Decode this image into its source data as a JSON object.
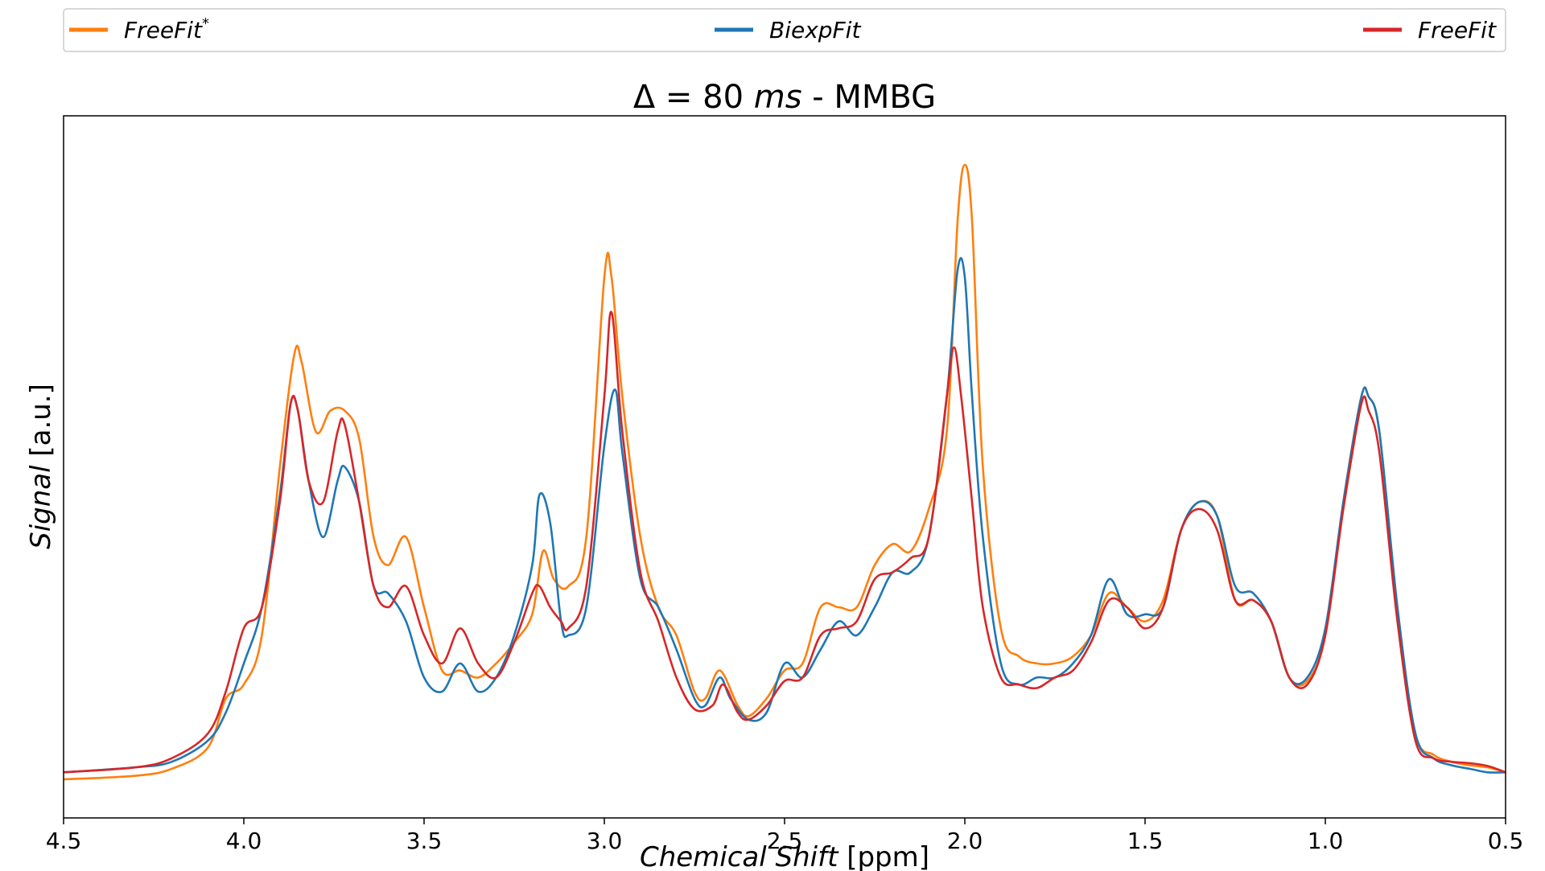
{
  "chart_data": {
    "type": "line",
    "title": {
      "prefix": "Δ = 80 ",
      "unit": "ms",
      "suffix": " - MMBG"
    },
    "xlabel": {
      "italic": "Chemical Shift",
      "normal": " [ppm]"
    },
    "ylabel": {
      "italic": "Signal",
      "normal": " [a.u.]"
    },
    "xlim": [
      4.5,
      0.5
    ],
    "ylim": [
      0,
      1.0
    ],
    "x_reversed": true,
    "grid": false,
    "legend_position": "top",
    "xticks": [
      "4.5",
      "4.0",
      "3.5",
      "3.0",
      "2.5",
      "2.0",
      "1.5",
      "1.0",
      "0.5"
    ],
    "series": [
      {
        "name": "FreeFit",
        "name_sup": "*",
        "color": "#ff7f0e",
        "points": [
          [
            4.5,
            0.055
          ],
          [
            4.3,
            0.06
          ],
          [
            4.2,
            0.07
          ],
          [
            4.1,
            0.1
          ],
          [
            4.05,
            0.17
          ],
          [
            4.0,
            0.19
          ],
          [
            3.95,
            0.26
          ],
          [
            3.9,
            0.5
          ],
          [
            3.86,
            0.66
          ],
          [
            3.84,
            0.65
          ],
          [
            3.8,
            0.55
          ],
          [
            3.76,
            0.58
          ],
          [
            3.72,
            0.58
          ],
          [
            3.68,
            0.54
          ],
          [
            3.64,
            0.4
          ],
          [
            3.6,
            0.36
          ],
          [
            3.55,
            0.4
          ],
          [
            3.5,
            0.3
          ],
          [
            3.45,
            0.21
          ],
          [
            3.4,
            0.21
          ],
          [
            3.35,
            0.2
          ],
          [
            3.3,
            0.22
          ],
          [
            3.25,
            0.25
          ],
          [
            3.2,
            0.29
          ],
          [
            3.17,
            0.38
          ],
          [
            3.14,
            0.34
          ],
          [
            3.1,
            0.33
          ],
          [
            3.05,
            0.4
          ],
          [
            3.0,
            0.77
          ],
          [
            2.98,
            0.77
          ],
          [
            2.95,
            0.6
          ],
          [
            2.9,
            0.4
          ],
          [
            2.85,
            0.3
          ],
          [
            2.8,
            0.26
          ],
          [
            2.75,
            0.18
          ],
          [
            2.72,
            0.17
          ],
          [
            2.68,
            0.21
          ],
          [
            2.63,
            0.16
          ],
          [
            2.6,
            0.145
          ],
          [
            2.55,
            0.17
          ],
          [
            2.5,
            0.21
          ],
          [
            2.45,
            0.22
          ],
          [
            2.4,
            0.3
          ],
          [
            2.35,
            0.3
          ],
          [
            2.3,
            0.3
          ],
          [
            2.25,
            0.36
          ],
          [
            2.2,
            0.39
          ],
          [
            2.15,
            0.38
          ],
          [
            2.1,
            0.44
          ],
          [
            2.05,
            0.55
          ],
          [
            2.02,
            0.85
          ],
          [
            2.0,
            0.93
          ],
          [
            1.98,
            0.85
          ],
          [
            1.95,
            0.5
          ],
          [
            1.9,
            0.27
          ],
          [
            1.85,
            0.23
          ],
          [
            1.8,
            0.22
          ],
          [
            1.75,
            0.22
          ],
          [
            1.7,
            0.23
          ],
          [
            1.65,
            0.26
          ],
          [
            1.6,
            0.32
          ],
          [
            1.55,
            0.3
          ],
          [
            1.5,
            0.28
          ],
          [
            1.45,
            0.31
          ],
          [
            1.4,
            0.41
          ],
          [
            1.35,
            0.45
          ],
          [
            1.3,
            0.43
          ],
          [
            1.25,
            0.31
          ],
          [
            1.2,
            0.31
          ],
          [
            1.15,
            0.28
          ],
          [
            1.1,
            0.2
          ],
          [
            1.05,
            0.195
          ],
          [
            1.0,
            0.26
          ],
          [
            0.95,
            0.45
          ],
          [
            0.9,
            0.6
          ],
          [
            0.88,
            0.6
          ],
          [
            0.85,
            0.55
          ],
          [
            0.8,
            0.3
          ],
          [
            0.75,
            0.12
          ],
          [
            0.7,
            0.09
          ],
          [
            0.65,
            0.08
          ],
          [
            0.6,
            0.075
          ],
          [
            0.55,
            0.072
          ],
          [
            0.5,
            0.065
          ]
        ]
      },
      {
        "name": "BiexpFit",
        "name_sup": "",
        "color": "#1f77b4",
        "points": [
          [
            4.5,
            0.065
          ],
          [
            4.3,
            0.072
          ],
          [
            4.2,
            0.08
          ],
          [
            4.1,
            0.11
          ],
          [
            4.05,
            0.15
          ],
          [
            4.0,
            0.22
          ],
          [
            3.95,
            0.3
          ],
          [
            3.9,
            0.46
          ],
          [
            3.87,
            0.59
          ],
          [
            3.85,
            0.58
          ],
          [
            3.82,
            0.48
          ],
          [
            3.78,
            0.4
          ],
          [
            3.74,
            0.48
          ],
          [
            3.72,
            0.5
          ],
          [
            3.68,
            0.45
          ],
          [
            3.64,
            0.33
          ],
          [
            3.6,
            0.32
          ],
          [
            3.55,
            0.28
          ],
          [
            3.5,
            0.2
          ],
          [
            3.45,
            0.18
          ],
          [
            3.4,
            0.22
          ],
          [
            3.35,
            0.18
          ],
          [
            3.3,
            0.2
          ],
          [
            3.25,
            0.26
          ],
          [
            3.2,
            0.36
          ],
          [
            3.18,
            0.46
          ],
          [
            3.15,
            0.42
          ],
          [
            3.12,
            0.28
          ],
          [
            3.1,
            0.26
          ],
          [
            3.05,
            0.3
          ],
          [
            3.0,
            0.53
          ],
          [
            2.97,
            0.61
          ],
          [
            2.95,
            0.52
          ],
          [
            2.9,
            0.34
          ],
          [
            2.85,
            0.3
          ],
          [
            2.8,
            0.24
          ],
          [
            2.75,
            0.17
          ],
          [
            2.72,
            0.16
          ],
          [
            2.68,
            0.2
          ],
          [
            2.65,
            0.17
          ],
          [
            2.6,
            0.14
          ],
          [
            2.55,
            0.15
          ],
          [
            2.5,
            0.22
          ],
          [
            2.45,
            0.2
          ],
          [
            2.4,
            0.24
          ],
          [
            2.35,
            0.28
          ],
          [
            2.3,
            0.26
          ],
          [
            2.25,
            0.3
          ],
          [
            2.2,
            0.35
          ],
          [
            2.15,
            0.35
          ],
          [
            2.1,
            0.4
          ],
          [
            2.05,
            0.6
          ],
          [
            2.02,
            0.78
          ],
          [
            2.0,
            0.77
          ],
          [
            1.98,
            0.6
          ],
          [
            1.95,
            0.4
          ],
          [
            1.9,
            0.22
          ],
          [
            1.85,
            0.19
          ],
          [
            1.8,
            0.2
          ],
          [
            1.75,
            0.2
          ],
          [
            1.7,
            0.22
          ],
          [
            1.65,
            0.26
          ],
          [
            1.6,
            0.34
          ],
          [
            1.55,
            0.29
          ],
          [
            1.5,
            0.29
          ],
          [
            1.45,
            0.3
          ],
          [
            1.4,
            0.41
          ],
          [
            1.35,
            0.45
          ],
          [
            1.3,
            0.43
          ],
          [
            1.25,
            0.33
          ],
          [
            1.2,
            0.32
          ],
          [
            1.15,
            0.28
          ],
          [
            1.1,
            0.2
          ],
          [
            1.05,
            0.2
          ],
          [
            1.0,
            0.27
          ],
          [
            0.95,
            0.45
          ],
          [
            0.9,
            0.6
          ],
          [
            0.88,
            0.6
          ],
          [
            0.85,
            0.55
          ],
          [
            0.8,
            0.3
          ],
          [
            0.75,
            0.12
          ],
          [
            0.7,
            0.085
          ],
          [
            0.65,
            0.075
          ],
          [
            0.6,
            0.07
          ],
          [
            0.55,
            0.065
          ],
          [
            0.5,
            0.065
          ]
        ]
      },
      {
        "name": "FreeFit",
        "name_sup": "",
        "color": "#d62728",
        "points": [
          [
            4.5,
            0.065
          ],
          [
            4.3,
            0.072
          ],
          [
            4.2,
            0.085
          ],
          [
            4.1,
            0.12
          ],
          [
            4.05,
            0.18
          ],
          [
            4.0,
            0.27
          ],
          [
            3.95,
            0.3
          ],
          [
            3.9,
            0.45
          ],
          [
            3.87,
            0.59
          ],
          [
            3.85,
            0.58
          ],
          [
            3.82,
            0.48
          ],
          [
            3.78,
            0.45
          ],
          [
            3.74,
            0.55
          ],
          [
            3.72,
            0.56
          ],
          [
            3.68,
            0.45
          ],
          [
            3.64,
            0.33
          ],
          [
            3.6,
            0.3
          ],
          [
            3.55,
            0.33
          ],
          [
            3.5,
            0.26
          ],
          [
            3.45,
            0.22
          ],
          [
            3.4,
            0.27
          ],
          [
            3.35,
            0.22
          ],
          [
            3.3,
            0.2
          ],
          [
            3.25,
            0.25
          ],
          [
            3.2,
            0.32
          ],
          [
            3.18,
            0.33
          ],
          [
            3.15,
            0.3
          ],
          [
            3.12,
            0.28
          ],
          [
            3.1,
            0.27
          ],
          [
            3.05,
            0.33
          ],
          [
            3.0,
            0.6
          ],
          [
            2.98,
            0.72
          ],
          [
            2.95,
            0.55
          ],
          [
            2.9,
            0.35
          ],
          [
            2.85,
            0.28
          ],
          [
            2.8,
            0.2
          ],
          [
            2.75,
            0.155
          ],
          [
            2.7,
            0.16
          ],
          [
            2.67,
            0.19
          ],
          [
            2.63,
            0.15
          ],
          [
            2.6,
            0.14
          ],
          [
            2.55,
            0.16
          ],
          [
            2.5,
            0.195
          ],
          [
            2.45,
            0.2
          ],
          [
            2.4,
            0.26
          ],
          [
            2.35,
            0.27
          ],
          [
            2.3,
            0.28
          ],
          [
            2.25,
            0.34
          ],
          [
            2.2,
            0.35
          ],
          [
            2.15,
            0.37
          ],
          [
            2.1,
            0.4
          ],
          [
            2.05,
            0.6
          ],
          [
            2.03,
            0.67
          ],
          [
            2.01,
            0.6
          ],
          [
            1.98,
            0.45
          ],
          [
            1.95,
            0.3
          ],
          [
            1.9,
            0.2
          ],
          [
            1.85,
            0.19
          ],
          [
            1.8,
            0.185
          ],
          [
            1.75,
            0.2
          ],
          [
            1.7,
            0.21
          ],
          [
            1.65,
            0.25
          ],
          [
            1.6,
            0.31
          ],
          [
            1.55,
            0.3
          ],
          [
            1.5,
            0.27
          ],
          [
            1.45,
            0.3
          ],
          [
            1.4,
            0.41
          ],
          [
            1.35,
            0.44
          ],
          [
            1.3,
            0.41
          ],
          [
            1.25,
            0.31
          ],
          [
            1.2,
            0.31
          ],
          [
            1.15,
            0.28
          ],
          [
            1.1,
            0.2
          ],
          [
            1.05,
            0.19
          ],
          [
            1.0,
            0.26
          ],
          [
            0.95,
            0.44
          ],
          [
            0.9,
            0.59
          ],
          [
            0.88,
            0.58
          ],
          [
            0.85,
            0.52
          ],
          [
            0.8,
            0.28
          ],
          [
            0.75,
            0.11
          ],
          [
            0.7,
            0.085
          ],
          [
            0.65,
            0.08
          ],
          [
            0.6,
            0.078
          ],
          [
            0.55,
            0.074
          ],
          [
            0.5,
            0.065
          ]
        ]
      }
    ]
  }
}
